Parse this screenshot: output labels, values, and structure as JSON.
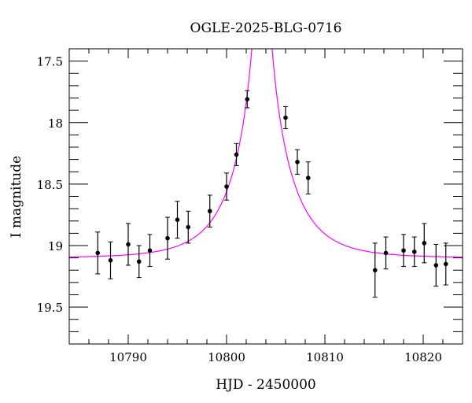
{
  "chart_data": {
    "type": "scatter",
    "title": "OGLE-2025-BLG-0716",
    "xlabel": "HJD - 2450000",
    "ylabel": "I magnitude",
    "xlim": [
      10784,
      10824
    ],
    "ylim": [
      19.8,
      17.4
    ],
    "y_inverted": true,
    "x_ticks": [
      10790,
      10800,
      10810,
      10820
    ],
    "y_ticks": [
      17.5,
      18,
      18.5,
      19,
      19.5
    ],
    "y_tick_labels": [
      "17.5",
      "18",
      "18.5",
      "19",
      "19.5"
    ],
    "grid": false,
    "colors": {
      "points": "#000000",
      "model": "#ff00ff"
    },
    "points": [
      {
        "x": 10786.9,
        "y": 19.06,
        "err": 0.17
      },
      {
        "x": 10788.2,
        "y": 19.12,
        "err": 0.15
      },
      {
        "x": 10790.0,
        "y": 18.99,
        "err": 0.17
      },
      {
        "x": 10791.1,
        "y": 19.13,
        "err": 0.13
      },
      {
        "x": 10792.2,
        "y": 19.04,
        "err": 0.13
      },
      {
        "x": 10794.0,
        "y": 18.94,
        "err": 0.17
      },
      {
        "x": 10795.0,
        "y": 18.79,
        "err": 0.15
      },
      {
        "x": 10796.1,
        "y": 18.85,
        "err": 0.13
      },
      {
        "x": 10798.3,
        "y": 18.72,
        "err": 0.13
      },
      {
        "x": 10800.0,
        "y": 18.52,
        "err": 0.11
      },
      {
        "x": 10801.0,
        "y": 18.26,
        "err": 0.09
      },
      {
        "x": 10802.1,
        "y": 17.81,
        "err": 0.07
      },
      {
        "x": 10806.0,
        "y": 17.96,
        "err": 0.09
      },
      {
        "x": 10807.2,
        "y": 18.32,
        "err": 0.1
      },
      {
        "x": 10808.3,
        "y": 18.45,
        "err": 0.13
      },
      {
        "x": 10815.1,
        "y": 19.2,
        "err": 0.22
      },
      {
        "x": 10816.2,
        "y": 19.06,
        "err": 0.13
      },
      {
        "x": 10818.0,
        "y": 19.04,
        "err": 0.13
      },
      {
        "x": 10819.1,
        "y": 19.05,
        "err": 0.12
      },
      {
        "x": 10820.1,
        "y": 18.98,
        "err": 0.16
      },
      {
        "x": 10821.3,
        "y": 19.16,
        "err": 0.17
      },
      {
        "x": 10822.3,
        "y": 19.15,
        "err": 0.17
      }
    ],
    "model": {
      "type": "point-lens",
      "t0": 10803.6,
      "tE": 5.0,
      "u0": 0.05,
      "baseline": 19.1
    }
  }
}
